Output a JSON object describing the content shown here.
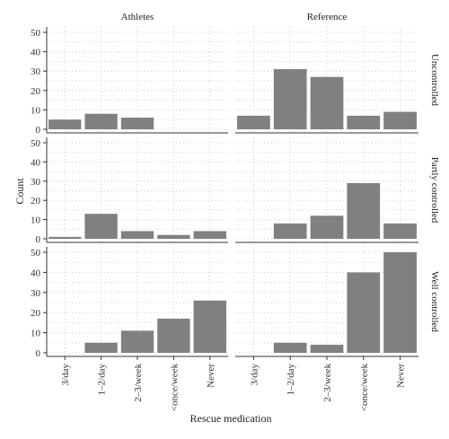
{
  "chart_data": {
    "type": "bar",
    "xlabel": "Rescue medication",
    "ylabel": "Count",
    "categories": [
      "3/day",
      "1–2/day",
      "2–3/week",
      "<once/week",
      "Never"
    ],
    "ylim": [
      0,
      50
    ],
    "yticks": [
      0,
      10,
      20,
      30,
      40,
      50
    ],
    "grid": true,
    "columns": [
      "Athletes",
      "Reference"
    ],
    "rows": [
      "Uncontrolled",
      "Partly controlled",
      "Well controlled"
    ],
    "panels": [
      {
        "column": "Athletes",
        "row": "Uncontrolled",
        "values": [
          5,
          8,
          6,
          0,
          0
        ]
      },
      {
        "column": "Reference",
        "row": "Uncontrolled",
        "values": [
          7,
          31,
          27,
          7,
          9
        ]
      },
      {
        "column": "Athletes",
        "row": "Partly controlled",
        "values": [
          1,
          13,
          4,
          2,
          4
        ]
      },
      {
        "column": "Reference",
        "row": "Partly controlled",
        "values": [
          0,
          8,
          12,
          29,
          8
        ]
      },
      {
        "column": "Athletes",
        "row": "Well controlled",
        "values": [
          0,
          5,
          11,
          17,
          26
        ]
      },
      {
        "column": "Reference",
        "row": "Well controlled",
        "values": [
          0,
          5,
          4,
          40,
          50
        ]
      }
    ],
    "colors": {
      "bar": "#808080"
    }
  }
}
